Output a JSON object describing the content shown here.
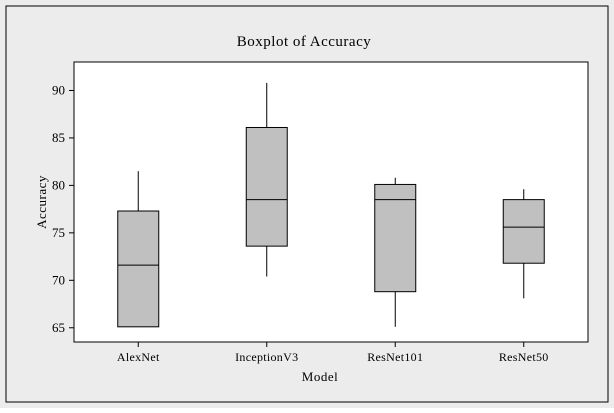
{
  "chart_data": {
    "type": "boxplot",
    "title": "Boxplot of Accuracy",
    "xlabel": "Model",
    "ylabel": "Accuracy",
    "ylim": [
      63.5,
      93
    ],
    "yticks": [
      65,
      70,
      75,
      80,
      85,
      90
    ],
    "categories": [
      "AlexNet",
      "InceptionV3",
      "ResNet101",
      "ResNet50"
    ],
    "boxes": [
      {
        "name": "AlexNet",
        "min": 65.1,
        "q1": 65.1,
        "median": 71.6,
        "q3": 77.3,
        "max": 81.5
      },
      {
        "name": "InceptionV3",
        "min": 70.4,
        "q1": 73.6,
        "median": 78.5,
        "q3": 86.1,
        "max": 90.8
      },
      {
        "name": "ResNet101",
        "min": 65.1,
        "q1": 68.8,
        "median": 78.5,
        "q3": 80.1,
        "max": 80.8
      },
      {
        "name": "ResNet50",
        "min": 68.1,
        "q1": 71.8,
        "median": 75.6,
        "q3": 78.5,
        "max": 79.6
      }
    ],
    "colors": {
      "box_fill": "#c0c0c0",
      "frame_bg": "#ececec",
      "plot_bg": "#ffffff",
      "line": "#000000"
    }
  }
}
